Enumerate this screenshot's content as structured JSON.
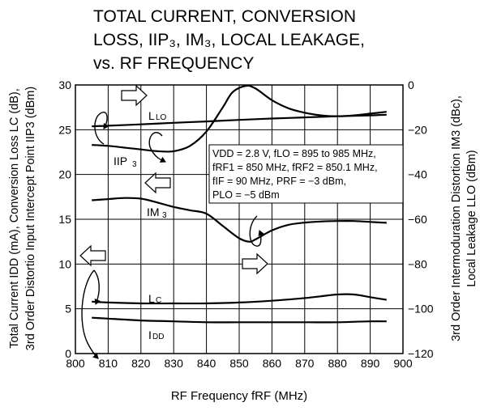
{
  "chart_data": {
    "type": "line",
    "title": [
      "TOTAL CURRENT, CONVERSION",
      "LOSS, IIP₃, IM₃, LOCAL LEAKAGE,",
      "vs. RF FREQUENCY"
    ],
    "xlabel": "RF Frequency  fRF (MHz)",
    "ylabel_left": [
      "Total Current  IDD (mA), Conversion Loss  LC (dB),",
      "3rd Order Distortio Input Intercept Point  IIP3 (dBm)"
    ],
    "ylabel_right": [
      "3rd Order Intermoduration Distortion IM3 (dBc),",
      "Local Leakage  LLO (dBm)"
    ],
    "xlim": [
      800,
      900
    ],
    "x_ticks": [
      800,
      810,
      820,
      830,
      840,
      850,
      860,
      870,
      880,
      890,
      900
    ],
    "ylim_left": [
      0,
      30
    ],
    "y_ticks_left": [
      0,
      5,
      10,
      15,
      20,
      25,
      30
    ],
    "ylim_right": [
      -120,
      0
    ],
    "y_ticks_right": [
      0,
      -20,
      -40,
      -60,
      -80,
      -100,
      -120
    ],
    "grid": true,
    "conditions": [
      "VDD = 2.8 V, fLO = 895 to 985 MHz,",
      "fRF1 = 850 MHz, fRF2 = 850.1 MHz,",
      "fIF = 90 MHz, PRF = −3 dBm,",
      "PLO = −5 dBm"
    ],
    "series": [
      {
        "name": "LLO",
        "axis": "right",
        "x": [
          805,
          810,
          820,
          830,
          840,
          850,
          860,
          870,
          880,
          890,
          895
        ],
        "y": [
          -18.5,
          -18.2,
          -17.6,
          -16.9,
          -16.3,
          -15.6,
          -15.0,
          -14.5,
          -14.0,
          -13.6,
          -13.3
        ]
      },
      {
        "name": "IIP3",
        "axis": "left",
        "x": [
          805,
          810,
          815,
          820,
          825,
          830,
          835,
          840,
          845,
          848,
          852,
          855,
          860,
          865,
          870,
          875,
          880,
          885,
          890,
          895
        ],
        "y": [
          23.3,
          23.2,
          23.0,
          22.8,
          22.6,
          22.6,
          23.2,
          24.8,
          27.5,
          29.2,
          29.9,
          29.6,
          28.3,
          27.4,
          26.9,
          26.6,
          26.5,
          26.6,
          26.8,
          27.0
        ]
      },
      {
        "name": "IM3",
        "axis": "right",
        "x": [
          805,
          810,
          815,
          820,
          825,
          830,
          835,
          840,
          845,
          850,
          853,
          855,
          860,
          865,
          870,
          875,
          880,
          885,
          890,
          895
        ],
        "y": [
          -51.5,
          -51.0,
          -50.5,
          -50.8,
          -52.5,
          -54.5,
          -56.0,
          -57.5,
          -63.0,
          -68.5,
          -70.0,
          -69.0,
          -65.0,
          -62.5,
          -61.5,
          -61.0,
          -60.8,
          -60.8,
          -61.2,
          -61.6
        ]
      },
      {
        "name": "LC",
        "axis": "left",
        "x": [
          805,
          810,
          820,
          830,
          840,
          850,
          860,
          870,
          875,
          880,
          885,
          890,
          895
        ],
        "y": [
          5.8,
          5.7,
          5.6,
          5.6,
          5.6,
          5.7,
          5.9,
          6.2,
          6.4,
          6.6,
          6.6,
          6.3,
          6.0
        ]
      },
      {
        "name": "IDD",
        "axis": "left",
        "x": [
          805,
          810,
          820,
          830,
          840,
          850,
          860,
          870,
          880,
          890,
          895
        ],
        "y": [
          4.0,
          3.9,
          3.7,
          3.6,
          3.5,
          3.5,
          3.5,
          3.5,
          3.5,
          3.6,
          3.6
        ]
      }
    ],
    "series_labels": [
      "L",
      "LO",
      "IIP",
      "3",
      "IM",
      "3",
      "L",
      "C",
      "I",
      "DD"
    ]
  }
}
